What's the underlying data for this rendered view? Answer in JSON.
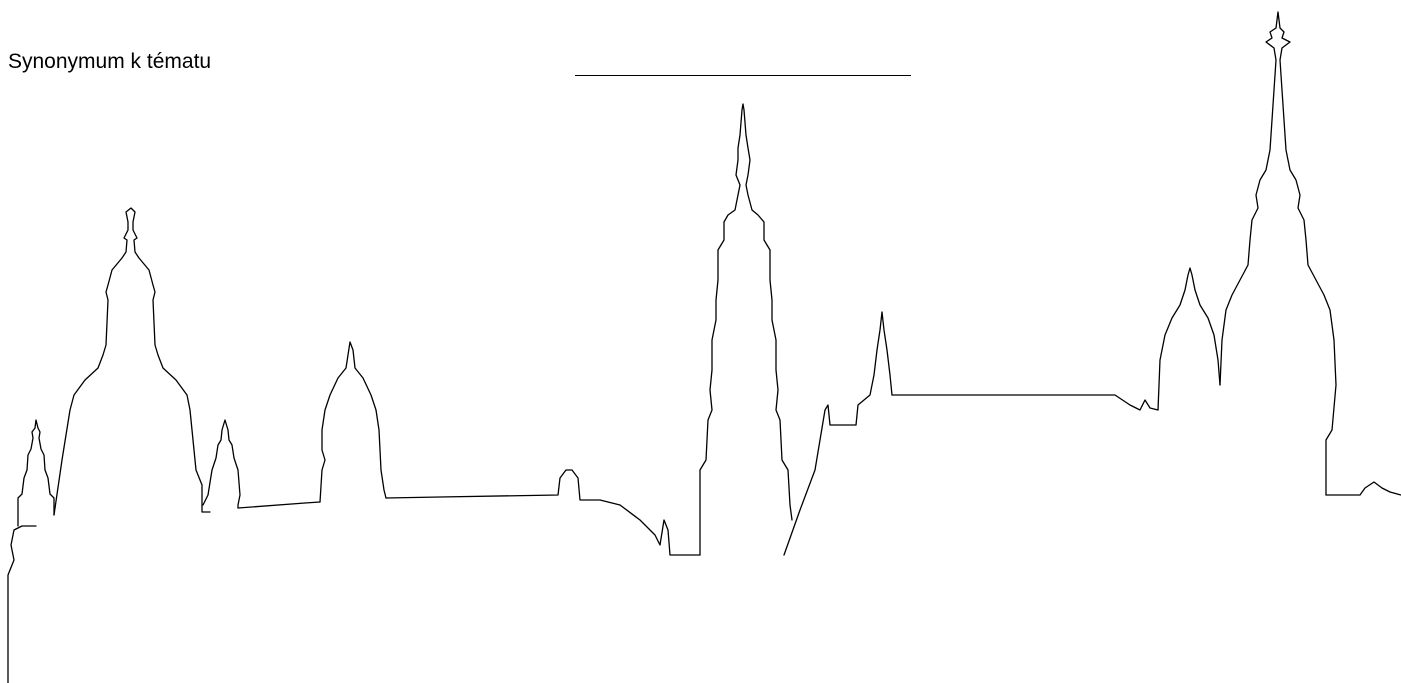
{
  "worksheet": {
    "prompt_label": "Synonymum k tématu"
  }
}
